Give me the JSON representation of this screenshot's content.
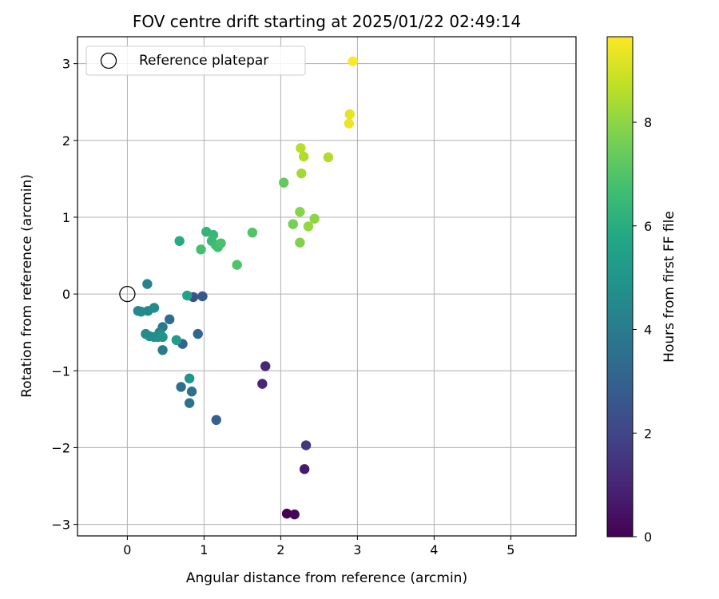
{
  "chart_data": {
    "type": "scatter",
    "title": "FOV centre drift starting at 2025/01/22 02:49:14",
    "xlabel": "Angular distance from reference (arcmin)",
    "ylabel": "Rotation from reference (arcmin)",
    "xlim": [
      -0.65,
      5.85
    ],
    "ylim": [
      -3.15,
      3.35
    ],
    "xticks": [
      0,
      1,
      2,
      3,
      4,
      5
    ],
    "yticks": [
      -3,
      -2,
      -1,
      0,
      1,
      2,
      3
    ],
    "grid": true,
    "legend": {
      "location": "upper-left",
      "entries": [
        "Reference platepar"
      ]
    },
    "reference_point": {
      "x": 0,
      "y": 0,
      "label": "Reference platepar"
    },
    "colorbar": {
      "label": "Hours from first FF file",
      "colormap": "viridis",
      "range": [
        0,
        9.65
      ],
      "ticks": [
        0,
        2,
        4,
        6,
        8
      ]
    },
    "points": [
      {
        "x": 2.08,
        "y": -2.86,
        "t": 0.0
      },
      {
        "x": 2.18,
        "y": -2.87,
        "t": 0.2
      },
      {
        "x": 2.31,
        "y": -2.28,
        "t": 0.7
      },
      {
        "x": 2.33,
        "y": -1.97,
        "t": 1.5
      },
      {
        "x": 1.8,
        "y": -0.94,
        "t": 1.1
      },
      {
        "x": 1.76,
        "y": -1.17,
        "t": 1.0
      },
      {
        "x": 0.86,
        "y": -0.04,
        "t": 2.4
      },
      {
        "x": 0.98,
        "y": -0.03,
        "t": 2.6
      },
      {
        "x": 1.16,
        "y": -1.64,
        "t": 3.0
      },
      {
        "x": 0.92,
        "y": -0.52,
        "t": 3.2
      },
      {
        "x": 0.72,
        "y": -0.65,
        "t": 3.1
      },
      {
        "x": 0.55,
        "y": -0.33,
        "t": 3.4
      },
      {
        "x": 0.7,
        "y": -1.21,
        "t": 3.5
      },
      {
        "x": 0.84,
        "y": -1.27,
        "t": 3.6
      },
      {
        "x": 0.81,
        "y": -1.42,
        "t": 3.7
      },
      {
        "x": 0.46,
        "y": -0.43,
        "t": 3.9
      },
      {
        "x": 0.46,
        "y": -0.73,
        "t": 4.0
      },
      {
        "x": 0.42,
        "y": -0.5,
        "t": 4.2
      },
      {
        "x": 0.26,
        "y": 0.13,
        "t": 4.3
      },
      {
        "x": 0.14,
        "y": -0.22,
        "t": 4.4
      },
      {
        "x": 0.18,
        "y": -0.23,
        "t": 4.5
      },
      {
        "x": 0.27,
        "y": -0.22,
        "t": 4.5
      },
      {
        "x": 0.35,
        "y": -0.18,
        "t": 4.6
      },
      {
        "x": 0.24,
        "y": -0.52,
        "t": 4.6
      },
      {
        "x": 0.29,
        "y": -0.55,
        "t": 4.7
      },
      {
        "x": 0.35,
        "y": -0.56,
        "t": 4.7
      },
      {
        "x": 0.4,
        "y": -0.56,
        "t": 4.8
      },
      {
        "x": 0.43,
        "y": -0.53,
        "t": 4.8
      },
      {
        "x": 0.46,
        "y": -0.56,
        "t": 4.9
      },
      {
        "x": 0.81,
        "y": -1.1,
        "t": 5.0
      },
      {
        "x": 0.64,
        "y": -0.6,
        "t": 5.3
      },
      {
        "x": 0.78,
        "y": -0.02,
        "t": 5.6
      },
      {
        "x": 0.68,
        "y": 0.69,
        "t": 5.9
      },
      {
        "x": 1.03,
        "y": 0.81,
        "t": 6.3
      },
      {
        "x": 1.12,
        "y": 0.77,
        "t": 6.4
      },
      {
        "x": 1.1,
        "y": 0.69,
        "t": 6.5
      },
      {
        "x": 1.15,
        "y": 0.64,
        "t": 6.6
      },
      {
        "x": 1.18,
        "y": 0.61,
        "t": 6.7
      },
      {
        "x": 1.22,
        "y": 0.66,
        "t": 6.8
      },
      {
        "x": 0.96,
        "y": 0.58,
        "t": 6.7
      },
      {
        "x": 1.43,
        "y": 0.38,
        "t": 6.9
      },
      {
        "x": 1.63,
        "y": 0.8,
        "t": 7.0
      },
      {
        "x": 2.04,
        "y": 1.45,
        "t": 7.3
      },
      {
        "x": 2.16,
        "y": 0.91,
        "t": 7.6
      },
      {
        "x": 2.25,
        "y": 0.67,
        "t": 7.8
      },
      {
        "x": 2.25,
        "y": 1.07,
        "t": 7.9
      },
      {
        "x": 2.36,
        "y": 0.88,
        "t": 8.1
      },
      {
        "x": 2.44,
        "y": 0.98,
        "t": 8.0
      },
      {
        "x": 2.27,
        "y": 1.57,
        "t": 8.3
      },
      {
        "x": 2.3,
        "y": 1.79,
        "t": 8.5
      },
      {
        "x": 2.26,
        "y": 1.9,
        "t": 8.6
      },
      {
        "x": 2.62,
        "y": 1.78,
        "t": 8.5
      },
      {
        "x": 2.9,
        "y": 2.34,
        "t": 9.3
      },
      {
        "x": 2.89,
        "y": 2.22,
        "t": 9.4
      },
      {
        "x": 2.94,
        "y": 3.03,
        "t": 9.6
      }
    ]
  }
}
